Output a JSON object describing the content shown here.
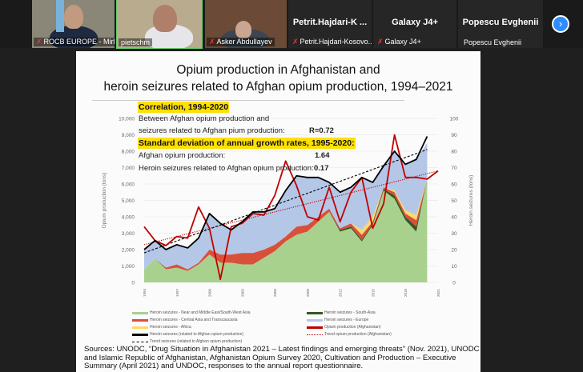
{
  "participants": [
    {
      "label": "ROCB EUROPE - Mirh...",
      "muted": true
    },
    {
      "label": "pietschm",
      "muted": false
    },
    {
      "label": "Asker Abdullayev",
      "muted": true
    },
    {
      "name": "Petrit.Hajdari-K ...",
      "label": "Petrit.Hajdari-Kosovo...",
      "muted": true
    },
    {
      "name": "Galaxy J4+",
      "label": "Galaxy J4+",
      "muted": true
    },
    {
      "name": "Popescu Evghenii",
      "label": "Popescu Evghenii",
      "muted": false
    }
  ],
  "next_icon": "›",
  "slide": {
    "title_line1": "Opium production in Afghanistan and",
    "title_line2": "heroin seizures related to Afghan opium production, 1994–2021",
    "correlation_heading": "Correlation, 1994-2020",
    "correlation_line1": "Between Afghan opium production and",
    "correlation_line2": "seizures related to Afghan pium production:",
    "correlation_value": "R=0.72",
    "stddev_heading": "Standard deviation of annual growth rates, 1995-2020:",
    "stddev_opium_label": "Afghan opium production:",
    "stddev_opium_value": "1.64",
    "stddev_heroin_label": "Heroin seizures related to Afghan opium production:",
    "stddev_heroin_value": "0.17",
    "sources": "Sources: UNODC, “Drug Situation in Afghanistan 2021 – Latest findings and emerging threats” (Nov. 2021),  UNODC and Islamic Republic of Afghanistan, Afghanistan Opium Survey 2020, Cultivation and Production – Executive Summary (April 2021) and UNDOC, responses to the annual report questionnaire."
  },
  "chart_data": {
    "type": "area",
    "title": "Opium production in Afghanistan and heroin seizures related to Afghan opium production, 1994–2021",
    "ylabel": "Opium production (tons)",
    "y2label": "Heroin seizures (tons)",
    "ylim": [
      0,
      10000
    ],
    "y2lim": [
      0,
      100
    ],
    "yticks": [
      "0",
      "1,000",
      "2,000",
      "3,000",
      "4,000",
      "5,000",
      "6,000",
      "7,000",
      "8,000",
      "9,000",
      "10,000"
    ],
    "y2ticks": [
      "0",
      "10",
      "20",
      "30",
      "40",
      "50",
      "60",
      "70",
      "80",
      "90",
      "100"
    ],
    "xticks": [
      "1994",
      "1997",
      "2000",
      "2003",
      "2006",
      "2009",
      "2012",
      "2015",
      "2018",
      "2021"
    ],
    "x": [
      1994,
      1995,
      1996,
      1997,
      1998,
      1999,
      2000,
      2001,
      2002,
      2003,
      2004,
      2005,
      2006,
      2007,
      2008,
      2009,
      2010,
      2011,
      2012,
      2013,
      2014,
      2015,
      2016,
      2017,
      2018,
      2019,
      2020,
      2021
    ],
    "stacked_series_right_axis": [
      {
        "name": "Heroin seizures - Near and Middle East/South-West Asia",
        "color": "#a9d18e",
        "values": [
          8,
          14.5,
          8,
          9,
          7,
          11,
          17,
          12,
          12,
          11,
          11,
          15,
          19,
          25,
          29,
          31,
          37,
          43,
          31,
          33,
          25,
          35,
          56,
          51,
          38,
          31,
          63
        ]
      },
      {
        "name": "Heroin seizures - South Asia",
        "color": "#375623",
        "values": [
          0,
          0,
          0,
          0,
          0,
          0,
          0,
          0,
          0,
          0,
          0,
          0,
          0,
          0,
          0,
          0,
          0,
          0,
          1,
          1,
          1,
          1,
          1,
          2,
          2,
          3,
          0
        ]
      },
      {
        "name": "Heroin seizures - Central Asia and Transcaucasia",
        "color": "#d9503a",
        "values": [
          0,
          0,
          1,
          2,
          1,
          1,
          3,
          5,
          5,
          7,
          7,
          5,
          4,
          3,
          5,
          4,
          3,
          2,
          1,
          2,
          3,
          1,
          1,
          2,
          2,
          4,
          0
        ]
      },
      {
        "name": "Heroin seizures - Africa",
        "color": "#ffd966",
        "values": [
          0,
          0,
          0,
          0,
          0,
          0,
          0,
          0,
          0,
          0,
          0,
          0,
          0,
          0,
          0,
          0,
          0,
          0,
          0,
          0,
          3,
          3,
          0,
          1,
          2,
          3,
          0
        ]
      },
      {
        "name": "Heroin seizures - Europe",
        "color": "#b4c7e7",
        "values": [
          12,
          11,
          11,
          12,
          13,
          15,
          22,
          19,
          15,
          19,
          25,
          23,
          22,
          28,
          31,
          29,
          24,
          16,
          22,
          22,
          32,
          21,
          13,
          24,
          28,
          34,
          22
        ]
      }
    ],
    "line_series": [
      {
        "name": "Opium production (Afghanistan)",
        "axis": "left",
        "color": "#c00000",
        "values": [
          3400,
          2550,
          2250,
          2800,
          2700,
          4600,
          3300,
          185,
          3400,
          3600,
          4200,
          4100,
          5300,
          7400,
          5900,
          4000,
          3800,
          5800,
          3700,
          5500,
          6400,
          3300,
          4800,
          9000,
          6400,
          6400,
          6300,
          6800
        ]
      },
      {
        "name": "Heroin seizures (related to Afghan opium production)",
        "axis": "right",
        "color": "#000000",
        "values": [
          20,
          25.5,
          20,
          23,
          21,
          27,
          42,
          36,
          32,
          37,
          43,
          43,
          45,
          56,
          65,
          64,
          64,
          61,
          55,
          58,
          64,
          61,
          71,
          80,
          72,
          75,
          89
        ]
      }
    ],
    "trend_series": [
      {
        "name": "Trend opium production (Afghanistan)",
        "axis": "left",
        "color": "#c00000",
        "style": "dotted",
        "from": [
          1994,
          2300
        ],
        "to": [
          2021,
          6800
        ]
      },
      {
        "name": "Trend seizures (related to Afghan opium production)",
        "axis": "right",
        "color": "#000000",
        "style": "dashed",
        "from": [
          1994,
          18
        ],
        "to": [
          2020,
          81
        ]
      }
    ],
    "legend": [
      "Heroin seizures - Near and Middle East/South-West Asia",
      "Heroin seizures - South-Asia",
      "Heroin seizures - Central Asia and Transcaucasia",
      "Heroin seizures - Europe",
      "Heroin seizures - Africa",
      "Opium production (Afghanistan)",
      "Heroin seizures (related to Afghan opium production)",
      "Trend opium production (Afghanistan)",
      "Trend seizures (related to Afghan opium production)"
    ],
    "legend_colors": [
      "#a9d18e",
      "#375623",
      "#d9503a",
      "#b4c7e7",
      "#ffd966",
      "#c00000",
      "#000000",
      "#c00000",
      "#000000"
    ],
    "legend_position": "bottom"
  }
}
